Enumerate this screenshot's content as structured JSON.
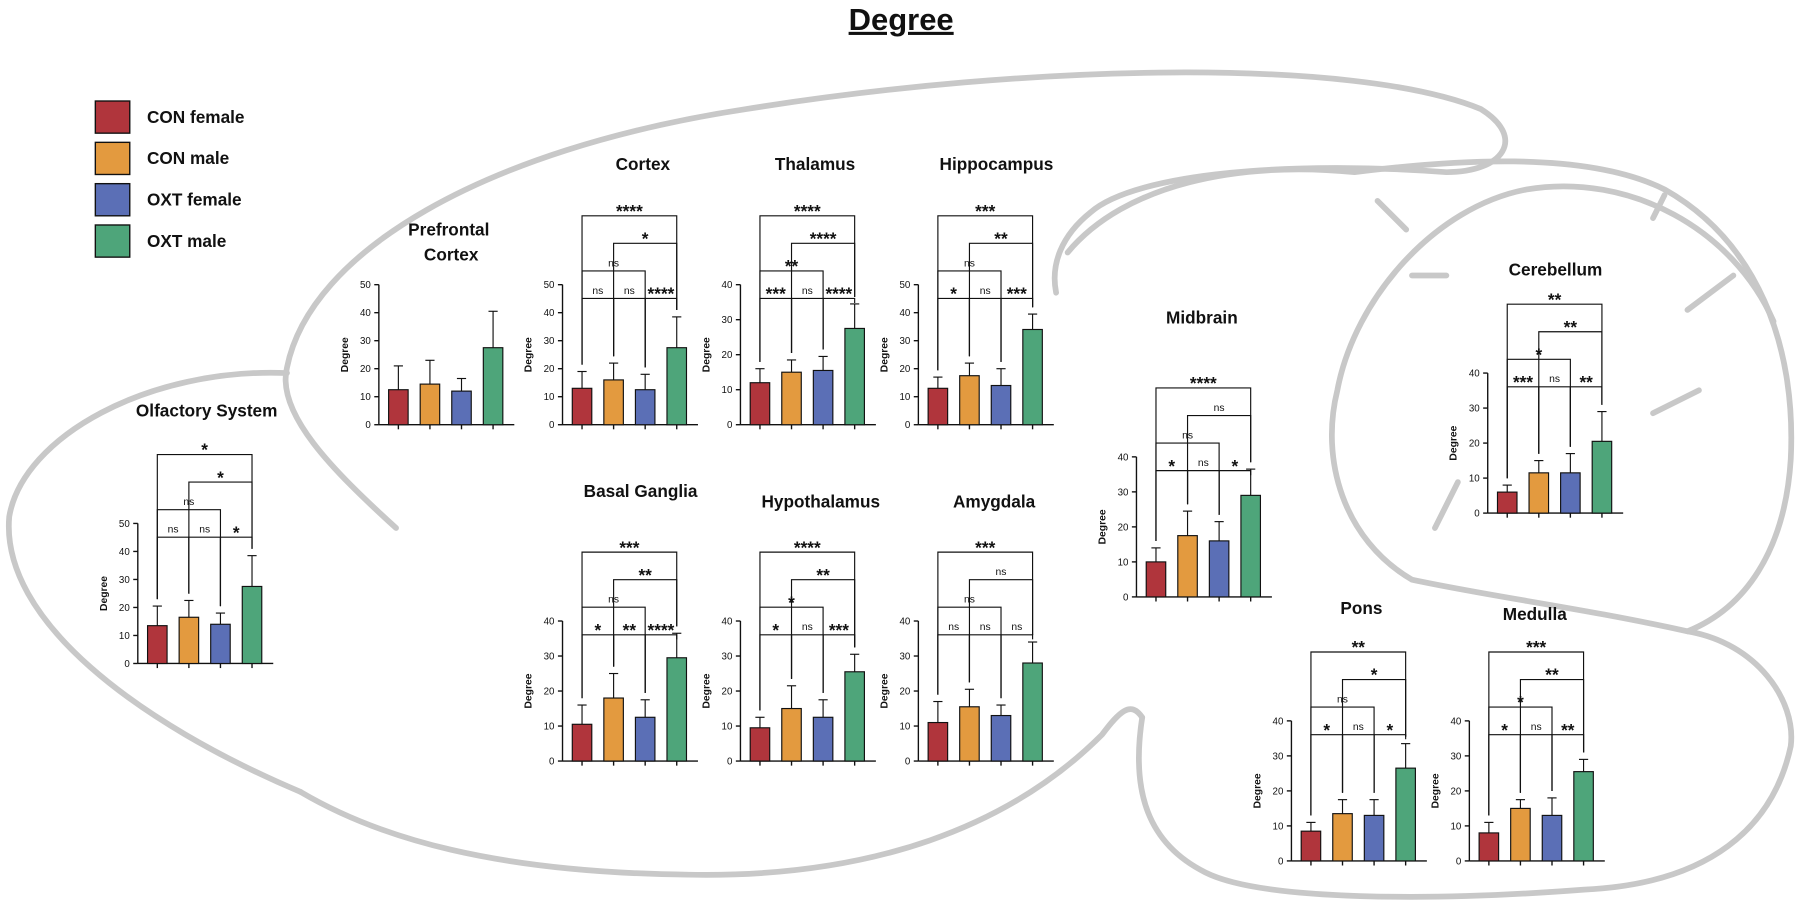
{
  "title": "Degree",
  "legend": [
    {
      "name": "CON female",
      "color": "#b0353c"
    },
    {
      "name": "CON male",
      "color": "#e39a3f"
    },
    {
      "name": "OXT female",
      "color": "#5b6fb6"
    },
    {
      "name": "OXT male",
      "color": "#4ea57a"
    }
  ],
  "chart_data": [
    {
      "type": "bar",
      "title": "Olfactory System",
      "ylabel": "Degree",
      "values": [
        13.5,
        16.5,
        14,
        27.5
      ],
      "errors": [
        7,
        6,
        4,
        11
      ],
      "ylim": [
        0,
        50
      ],
      "yticks": [
        0,
        10,
        20,
        30,
        40,
        50
      ],
      "comparisons": [
        "ns",
        "ns",
        "*",
        "ns",
        "*",
        "*"
      ]
    },
    {
      "type": "bar",
      "title": "Prefrontal Cortex",
      "ylabel": "Degree",
      "values": [
        12.5,
        14.5,
        12,
        27.5
      ],
      "errors": [
        8.5,
        8.5,
        4.5,
        13
      ],
      "ylim": [
        0,
        50
      ],
      "yticks": [
        0,
        10,
        20,
        30,
        40,
        50
      ],
      "comparisons": []
    },
    {
      "type": "bar",
      "title": "Cortex",
      "ylabel": "Degree",
      "values": [
        13,
        16,
        12.5,
        27.5
      ],
      "errors": [
        6,
        6,
        5.5,
        11
      ],
      "ylim": [
        0,
        50
      ],
      "yticks": [
        0,
        10,
        20,
        30,
        40,
        50
      ],
      "comparisons": [
        "ns",
        "ns",
        "****",
        "ns",
        "*",
        "****"
      ]
    },
    {
      "type": "bar",
      "title": "Thalamus",
      "ylabel": "Degree",
      "values": [
        12,
        15,
        15.5,
        27.5
      ],
      "errors": [
        4,
        3.5,
        4,
        7
      ],
      "ylim": [
        0,
        40
      ],
      "yticks": [
        0,
        10,
        20,
        30,
        40
      ],
      "comparisons": [
        "***",
        "ns",
        "****",
        "**",
        "****",
        "****"
      ]
    },
    {
      "type": "bar",
      "title": "Hippocampus",
      "ylabel": "Degree",
      "values": [
        13,
        17.5,
        14,
        34
      ],
      "errors": [
        4,
        4.5,
        6,
        5.5
      ],
      "ylim": [
        0,
        50
      ],
      "yticks": [
        0,
        10,
        20,
        30,
        40,
        50
      ],
      "comparisons": [
        "*",
        "ns",
        "***",
        "ns",
        "**",
        "***"
      ]
    },
    {
      "type": "bar",
      "title": "Basal Ganglia",
      "ylabel": "Degree",
      "values": [
        10.5,
        18,
        12.5,
        29.5
      ],
      "errors": [
        5.5,
        7,
        5,
        7
      ],
      "ylim": [
        0,
        40
      ],
      "yticks": [
        0,
        10,
        20,
        30,
        40
      ],
      "comparisons": [
        "*",
        "**",
        "****",
        "ns",
        "**",
        "***"
      ]
    },
    {
      "type": "bar",
      "title": "Hypothalamus",
      "ylabel": "Degree",
      "values": [
        9.5,
        15,
        12.5,
        25.5
      ],
      "errors": [
        3,
        6.5,
        5,
        5
      ],
      "ylim": [
        0,
        40
      ],
      "yticks": [
        0,
        10,
        20,
        30,
        40
      ],
      "comparisons": [
        "*",
        "ns",
        "***",
        "*",
        "**",
        "****"
      ]
    },
    {
      "type": "bar",
      "title": "Amygdala",
      "ylabel": "Degree",
      "values": [
        11,
        15.5,
        13,
        28
      ],
      "errors": [
        6,
        5,
        3,
        6
      ],
      "ylim": [
        0,
        40
      ],
      "yticks": [
        0,
        10,
        20,
        30,
        40
      ],
      "comparisons": [
        "ns",
        "ns",
        "ns",
        "ns",
        "ns",
        "***"
      ]
    },
    {
      "type": "bar",
      "title": "Midbrain",
      "ylabel": "Degree",
      "values": [
        10,
        17.5,
        16,
        29
      ],
      "errors": [
        4,
        7,
        5.5,
        7.5
      ],
      "ylim": [
        0,
        40
      ],
      "yticks": [
        0,
        10,
        20,
        30,
        40
      ],
      "comparisons": [
        "*",
        "ns",
        "*",
        "ns",
        "ns",
        "****"
      ]
    },
    {
      "type": "bar",
      "title": "Cerebellum",
      "ylabel": "Degree",
      "values": [
        6,
        11.5,
        11.5,
        20.5
      ],
      "errors": [
        2,
        3.5,
        5.5,
        8.5
      ],
      "ylim": [
        0,
        40
      ],
      "yticks": [
        0,
        10,
        20,
        30,
        40
      ],
      "comparisons": [
        "***",
        "ns",
        "**",
        "*",
        "**",
        "**"
      ]
    },
    {
      "type": "bar",
      "title": "Pons",
      "ylabel": "Degree",
      "values": [
        8.5,
        13.5,
        13,
        26.5
      ],
      "errors": [
        2.5,
        4,
        4.5,
        7
      ],
      "ylim": [
        0,
        40
      ],
      "yticks": [
        0,
        10,
        20,
        30,
        40
      ],
      "comparisons": [
        "*",
        "ns",
        "*",
        "ns",
        "*",
        "**"
      ]
    },
    {
      "type": "bar",
      "title": "Medulla",
      "ylabel": "Degree",
      "values": [
        8,
        15,
        13,
        25.5
      ],
      "errors": [
        3,
        2.5,
        5,
        3.5
      ],
      "ylim": [
        0,
        40
      ],
      "yticks": [
        0,
        10,
        20,
        30,
        40
      ],
      "comparisons": [
        "*",
        "ns",
        "**",
        "*",
        "**",
        "***"
      ]
    }
  ]
}
